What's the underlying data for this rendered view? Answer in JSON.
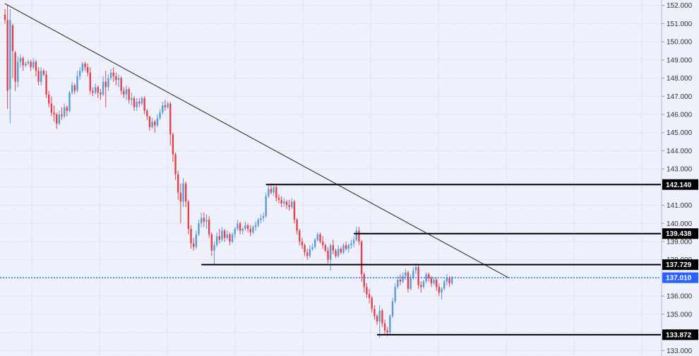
{
  "chart_data": {
    "type": "candlestick",
    "ylim": [
      132.7,
      152.3
    ],
    "y_ticks": [
      "152.000",
      "151.000",
      "150.000",
      "149.000",
      "148.000",
      "147.000",
      "146.000",
      "145.000",
      "144.000",
      "143.000",
      "142.000",
      "141.000",
      "140.000",
      "139.000",
      "138.000",
      "137.000",
      "136.000",
      "135.000",
      "134.000",
      "133.000"
    ],
    "grid": true,
    "colors": {
      "up": "#5b9bd5",
      "down": "#e0424a",
      "background": "#eef0fb",
      "grid": "#c9ccd8",
      "current_price": "#2962ff",
      "level_line": "#000000",
      "trendline": "#333333"
    },
    "current_price": {
      "value": 137.01,
      "label": "137.010"
    },
    "levels": [
      {
        "value": 142.14,
        "label": "142.140",
        "start_bar": 101
      },
      {
        "value": 139.438,
        "label": "139.438",
        "start_bar": 135
      },
      {
        "value": 137.729,
        "label": "137.729",
        "start_bar": 76
      },
      {
        "value": 133.872,
        "label": "133.872",
        "start_bar": 144
      }
    ],
    "trendline": {
      "from": {
        "bar": 0,
        "price": 152.1
      },
      "to": {
        "bar": 195,
        "price": 137.0
      }
    },
    "candles": [
      [
        151.5,
        151.8,
        151.0,
        151.2
      ],
      [
        151.2,
        152.0,
        146.3,
        147.3
      ],
      [
        147.4,
        151.8,
        145.5,
        151.2
      ],
      [
        150.9,
        151.0,
        148.0,
        149.5
      ],
      [
        149.4,
        149.5,
        147.3,
        147.8
      ],
      [
        147.8,
        149.2,
        147.5,
        148.9
      ],
      [
        148.9,
        149.3,
        148.6,
        149.1
      ],
      [
        149.1,
        149.2,
        148.4,
        148.7
      ],
      [
        148.7,
        148.9,
        148.6,
        148.8
      ],
      [
        148.8,
        149.0,
        148.7,
        148.9
      ],
      [
        148.9,
        149.0,
        148.4,
        148.6
      ],
      [
        148.6,
        149.1,
        148.5,
        148.9
      ],
      [
        148.9,
        149.0,
        148.1,
        148.4
      ],
      [
        148.4,
        148.6,
        147.6,
        147.8
      ],
      [
        147.8,
        148.6,
        147.6,
        148.4
      ],
      [
        148.4,
        148.5,
        148.1,
        148.2
      ],
      [
        148.2,
        148.4,
        146.9,
        147.1
      ],
      [
        147.1,
        147.3,
        146.4,
        146.6
      ],
      [
        146.6,
        147.0,
        145.9,
        146.1
      ],
      [
        146.1,
        146.5,
        145.6,
        146.0
      ],
      [
        146.0,
        146.1,
        145.2,
        145.5
      ],
      [
        145.5,
        146.2,
        145.4,
        146.0
      ],
      [
        146.0,
        146.4,
        145.7,
        145.9
      ],
      [
        145.9,
        146.6,
        145.8,
        146.4
      ],
      [
        146.4,
        146.5,
        145.9,
        146.2
      ],
      [
        146.2,
        147.3,
        146.1,
        147.2
      ],
      [
        147.2,
        147.8,
        147.1,
        147.6
      ],
      [
        147.6,
        147.7,
        147.1,
        147.3
      ],
      [
        147.3,
        148.4,
        147.2,
        148.1
      ],
      [
        148.1,
        148.6,
        147.9,
        148.4
      ],
      [
        148.4,
        148.9,
        148.3,
        148.8
      ],
      [
        148.8,
        148.9,
        148.4,
        148.6
      ],
      [
        148.6,
        148.8,
        148.1,
        148.3
      ],
      [
        148.3,
        148.6,
        147.1,
        147.3
      ],
      [
        147.3,
        147.5,
        147.0,
        147.2
      ],
      [
        147.2,
        147.7,
        147.1,
        147.5
      ],
      [
        147.5,
        147.6,
        146.9,
        147.2
      ],
      [
        147.2,
        147.4,
        146.8,
        147.1
      ],
      [
        147.1,
        148.1,
        147.0,
        147.8
      ],
      [
        147.8,
        148.4,
        146.4,
        147.5
      ],
      [
        147.5,
        148.2,
        147.3,
        148.0
      ],
      [
        148.0,
        148.5,
        147.9,
        148.3
      ],
      [
        148.3,
        148.6,
        147.8,
        148.1
      ],
      [
        148.1,
        148.3,
        147.6,
        147.9
      ],
      [
        147.9,
        148.2,
        147.5,
        148.0
      ],
      [
        148.0,
        148.1,
        147.1,
        147.3
      ],
      [
        147.3,
        147.5,
        146.9,
        147.1
      ],
      [
        147.1,
        147.6,
        146.8,
        147.4
      ],
      [
        147.4,
        147.5,
        146.6,
        146.8
      ],
      [
        146.8,
        147.2,
        146.5,
        146.9
      ],
      [
        146.9,
        147.0,
        146.2,
        146.4
      ],
      [
        146.4,
        146.9,
        146.2,
        146.7
      ],
      [
        146.7,
        146.9,
        146.4,
        146.6
      ],
      [
        146.6,
        147.0,
        146.5,
        146.9
      ],
      [
        146.9,
        147.0,
        146.0,
        146.2
      ],
      [
        146.2,
        146.3,
        145.7,
        145.9
      ],
      [
        145.9,
        145.9,
        145.1,
        145.3
      ],
      [
        145.3,
        145.8,
        145.2,
        145.6
      ],
      [
        145.6,
        145.7,
        145.0,
        145.4
      ],
      [
        145.4,
        146.0,
        145.3,
        145.8
      ],
      [
        145.8,
        146.3,
        145.7,
        146.1
      ],
      [
        146.1,
        146.7,
        146.0,
        146.5
      ],
      [
        146.5,
        146.8,
        146.2,
        146.4
      ],
      [
        146.4,
        146.7,
        146.3,
        146.6
      ],
      [
        146.6,
        146.7,
        144.3,
        144.9
      ],
      [
        144.9,
        145.0,
        143.4,
        143.8
      ],
      [
        143.8,
        143.9,
        142.4,
        142.7
      ],
      [
        142.7,
        142.9,
        141.3,
        141.7
      ],
      [
        141.7,
        142.2,
        140.0,
        141.2
      ],
      [
        141.2,
        142.5,
        140.9,
        142.2
      ],
      [
        142.2,
        142.3,
        140.9,
        141.2
      ],
      [
        141.2,
        141.3,
        139.4,
        139.7
      ],
      [
        139.7,
        139.9,
        138.6,
        138.9
      ],
      [
        138.9,
        139.2,
        138.5,
        138.7
      ],
      [
        138.7,
        139.6,
        138.6,
        139.4
      ],
      [
        139.4,
        140.2,
        139.3,
        140.0
      ],
      [
        140.0,
        140.6,
        139.8,
        140.3
      ],
      [
        140.3,
        140.6,
        139.8,
        140.1
      ],
      [
        140.1,
        140.5,
        139.7,
        140.2
      ],
      [
        140.2,
        140.4,
        139.2,
        139.4
      ],
      [
        139.4,
        139.5,
        138.2,
        138.5
      ],
      [
        138.5,
        139.0,
        137.7,
        138.8
      ],
      [
        138.8,
        139.5,
        138.7,
        139.3
      ],
      [
        139.3,
        139.7,
        138.9,
        139.1
      ],
      [
        139.1,
        139.8,
        139.0,
        139.6
      ],
      [
        139.6,
        139.7,
        139.0,
        139.2
      ],
      [
        139.2,
        139.6,
        139.1,
        139.4
      ],
      [
        139.4,
        139.5,
        138.8,
        139.0
      ],
      [
        139.0,
        139.5,
        138.9,
        139.4
      ],
      [
        139.4,
        139.8,
        139.2,
        139.7
      ],
      [
        139.7,
        140.2,
        139.6,
        140.0
      ],
      [
        140.0,
        140.1,
        139.4,
        139.6
      ],
      [
        139.6,
        139.8,
        139.4,
        139.7
      ],
      [
        139.7,
        140.1,
        139.6,
        139.9
      ],
      [
        139.9,
        140.0,
        139.5,
        139.7
      ],
      [
        139.7,
        139.9,
        139.3,
        139.5
      ],
      [
        139.5,
        139.9,
        139.4,
        139.8
      ],
      [
        139.8,
        140.1,
        139.6,
        139.9
      ],
      [
        139.9,
        140.3,
        139.8,
        140.2
      ],
      [
        140.2,
        140.5,
        140.0,
        140.3
      ],
      [
        140.3,
        140.6,
        140.1,
        140.4
      ],
      [
        140.4,
        141.7,
        140.3,
        141.5
      ],
      [
        141.5,
        142.1,
        141.4,
        141.9
      ],
      [
        141.9,
        142.2,
        141.6,
        141.7
      ],
      [
        141.7,
        142.1,
        141.5,
        142.0
      ],
      [
        142.0,
        142.1,
        141.2,
        141.4
      ],
      [
        141.4,
        141.6,
        141.1,
        141.3
      ],
      [
        141.3,
        141.5,
        140.9,
        141.1
      ],
      [
        141.1,
        141.4,
        140.9,
        141.2
      ],
      [
        141.2,
        141.3,
        140.8,
        141.0
      ],
      [
        141.0,
        141.3,
        140.7,
        140.9
      ],
      [
        140.9,
        141.4,
        140.8,
        141.2
      ],
      [
        141.2,
        141.3,
        140.0,
        140.2
      ],
      [
        140.2,
        140.3,
        139.4,
        139.6
      ],
      [
        139.6,
        139.7,
        138.8,
        139.0
      ],
      [
        139.0,
        139.2,
        138.6,
        138.8
      ],
      [
        138.8,
        138.9,
        138.2,
        138.4
      ],
      [
        138.4,
        138.6,
        138.0,
        138.2
      ],
      [
        138.2,
        138.8,
        138.1,
        138.6
      ],
      [
        138.6,
        138.9,
        138.5,
        138.7
      ],
      [
        138.7,
        139.2,
        138.6,
        139.1
      ],
      [
        139.1,
        139.5,
        139.0,
        139.4
      ],
      [
        139.4,
        139.5,
        138.9,
        139.0
      ],
      [
        139.0,
        139.3,
        138.6,
        138.8
      ],
      [
        138.8,
        138.9,
        138.4,
        138.5
      ],
      [
        138.5,
        138.7,
        137.8,
        138.0
      ],
      [
        138.0,
        138.9,
        137.4,
        138.8
      ],
      [
        138.8,
        139.1,
        138.3,
        138.5
      ],
      [
        138.5,
        138.6,
        138.1,
        138.2
      ],
      [
        138.2,
        138.8,
        138.1,
        138.6
      ],
      [
        138.6,
        138.7,
        138.3,
        138.4
      ],
      [
        138.4,
        138.9,
        138.3,
        138.8
      ],
      [
        138.8,
        139.0,
        138.5,
        138.6
      ],
      [
        138.6,
        138.9,
        138.4,
        138.8
      ],
      [
        138.8,
        139.1,
        138.6,
        138.9
      ],
      [
        138.9,
        139.3,
        138.7,
        139.1
      ],
      [
        139.1,
        139.8,
        139.0,
        139.6
      ],
      [
        139.6,
        139.8,
        138.8,
        139.0
      ],
      [
        139.0,
        139.1,
        136.8,
        137.2
      ],
      [
        137.2,
        137.3,
        136.2,
        136.5
      ],
      [
        136.5,
        136.7,
        135.9,
        136.1
      ],
      [
        136.1,
        136.4,
        135.6,
        135.9
      ],
      [
        135.9,
        136.0,
        135.1,
        135.3
      ],
      [
        135.3,
        135.5,
        134.7,
        134.9
      ],
      [
        134.9,
        135.0,
        134.4,
        134.6
      ],
      [
        134.6,
        135.5,
        133.7,
        135.2
      ],
      [
        135.2,
        135.3,
        134.3,
        134.5
      ],
      [
        134.5,
        134.7,
        133.9,
        134.1
      ],
      [
        134.1,
        134.3,
        133.8,
        134.0
      ],
      [
        134.0,
        135.0,
        133.9,
        134.9
      ],
      [
        134.9,
        135.9,
        134.8,
        135.7
      ],
      [
        135.7,
        136.7,
        135.6,
        136.5
      ],
      [
        136.5,
        137.1,
        136.4,
        136.9
      ],
      [
        136.9,
        137.2,
        136.6,
        136.8
      ],
      [
        136.8,
        137.3,
        136.7,
        137.1
      ],
      [
        137.1,
        137.5,
        136.9,
        137.3
      ],
      [
        137.3,
        137.4,
        136.2,
        136.4
      ],
      [
        136.4,
        137.2,
        136.3,
        137.0
      ],
      [
        137.0,
        137.6,
        136.9,
        137.4
      ],
      [
        137.4,
        137.8,
        137.2,
        137.6
      ],
      [
        137.6,
        137.7,
        136.4,
        136.6
      ],
      [
        136.6,
        136.8,
        136.2,
        136.5
      ],
      [
        136.5,
        136.9,
        136.4,
        136.8
      ],
      [
        136.8,
        137.3,
        136.7,
        137.2
      ],
      [
        137.2,
        137.3,
        136.8,
        137.0
      ],
      [
        137.0,
        137.1,
        136.5,
        136.7
      ],
      [
        136.7,
        137.0,
        136.6,
        136.9
      ],
      [
        136.9,
        137.0,
        136.3,
        136.5
      ],
      [
        136.5,
        136.7,
        136.0,
        136.2
      ],
      [
        136.2,
        136.5,
        135.8,
        136.4
      ],
      [
        136.4,
        136.9,
        136.3,
        136.8
      ],
      [
        136.8,
        137.2,
        136.6,
        137.0
      ],
      [
        137.0,
        137.1,
        136.5,
        136.7
      ],
      [
        136.7,
        137.1,
        136.6,
        137.0
      ]
    ]
  }
}
